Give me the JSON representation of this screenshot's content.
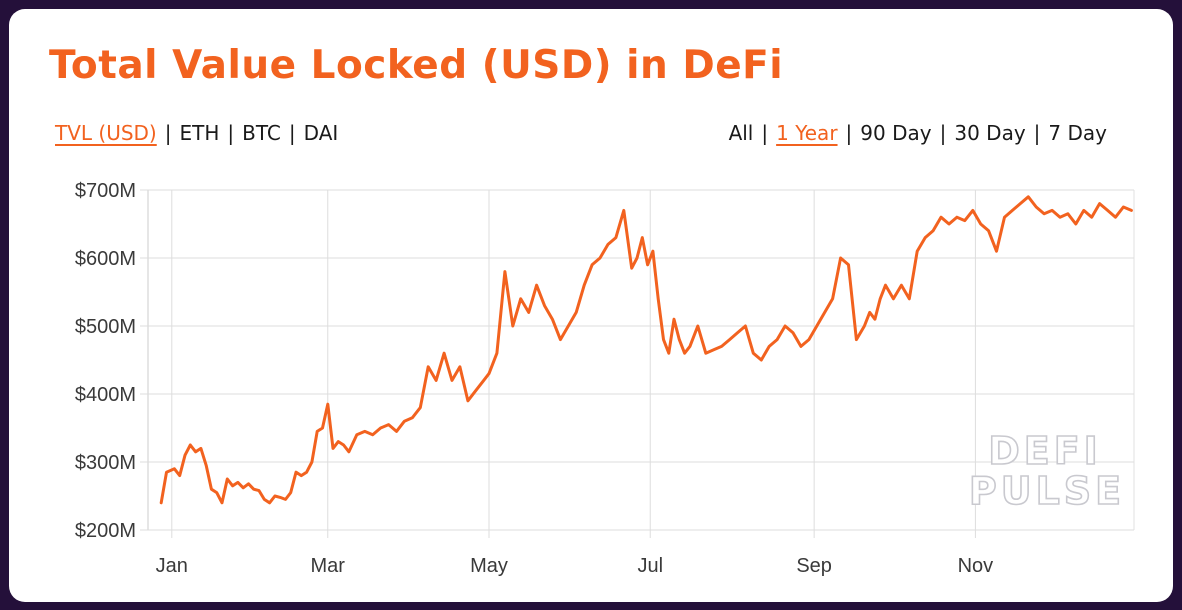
{
  "title": "Total Value Locked (USD) in DeFi",
  "metric_tabs": [
    {
      "label": "TVL (USD)",
      "active": true
    },
    {
      "label": "ETH",
      "active": false
    },
    {
      "label": "BTC",
      "active": false
    },
    {
      "label": "DAI",
      "active": false
    }
  ],
  "range_tabs": [
    {
      "label": "All",
      "active": false
    },
    {
      "label": "1 Year",
      "active": true
    },
    {
      "label": "90 Day",
      "active": false
    },
    {
      "label": "30 Day",
      "active": false
    },
    {
      "label": "7 Day",
      "active": false
    }
  ],
  "separator": "|",
  "watermark": [
    "DEFI",
    "PULSE"
  ],
  "colors": {
    "accent": "#f2621f",
    "line": "#f2621f",
    "background": "#24103a",
    "card": "#ffffff",
    "grid": "#dddddd"
  },
  "chart_data": {
    "type": "line",
    "title": "Total Value Locked (USD) in DeFi",
    "xlabel": "",
    "ylabel": "",
    "ylim": [
      200,
      700
    ],
    "y_unit": "M USD",
    "y_ticks": [
      {
        "value": 200,
        "label": "$200M"
      },
      {
        "value": 300,
        "label": "$300M"
      },
      {
        "value": 400,
        "label": "$400M"
      },
      {
        "value": 500,
        "label": "$500M"
      },
      {
        "value": 600,
        "label": "$600M"
      },
      {
        "value": 700,
        "label": "$700M"
      }
    ],
    "x_ticks": [
      {
        "date": "2019-01-01",
        "label": "Jan"
      },
      {
        "date": "2019-03-01",
        "label": "Mar"
      },
      {
        "date": "2019-05-01",
        "label": "May"
      },
      {
        "date": "2019-07-01",
        "label": "Jul"
      },
      {
        "date": "2019-09-01",
        "label": "Sep"
      },
      {
        "date": "2019-11-01",
        "label": "Nov"
      }
    ],
    "xlim": [
      "2018-12-23",
      "2019-12-31"
    ],
    "grid": true,
    "legend": "none",
    "series": [
      {
        "x": [
          "2018-12-28",
          "2018-12-30",
          "2019-01-02",
          "2019-01-04",
          "2019-01-06",
          "2019-01-08",
          "2019-01-10",
          "2019-01-12",
          "2019-01-14",
          "2019-01-16",
          "2019-01-18",
          "2019-01-20",
          "2019-01-22",
          "2019-01-24",
          "2019-01-26",
          "2019-01-28",
          "2019-01-30",
          "2019-02-01",
          "2019-02-03",
          "2019-02-05",
          "2019-02-07",
          "2019-02-09",
          "2019-02-11",
          "2019-02-13",
          "2019-02-15",
          "2019-02-17",
          "2019-02-19",
          "2019-02-21",
          "2019-02-23",
          "2019-02-25",
          "2019-02-27",
          "2019-03-01",
          "2019-03-03",
          "2019-03-05",
          "2019-03-07",
          "2019-03-09",
          "2019-03-12",
          "2019-03-15",
          "2019-03-18",
          "2019-03-21",
          "2019-03-24",
          "2019-03-27",
          "2019-03-30",
          "2019-04-02",
          "2019-04-05",
          "2019-04-08",
          "2019-04-11",
          "2019-04-14",
          "2019-04-17",
          "2019-04-20",
          "2019-04-23",
          "2019-04-26",
          "2019-04-29",
          "2019-05-01",
          "2019-05-04",
          "2019-05-07",
          "2019-05-10",
          "2019-05-13",
          "2019-05-16",
          "2019-05-19",
          "2019-05-22",
          "2019-05-25",
          "2019-05-28",
          "2019-05-31",
          "2019-06-03",
          "2019-06-06",
          "2019-06-09",
          "2019-06-12",
          "2019-06-15",
          "2019-06-18",
          "2019-06-21",
          "2019-06-24",
          "2019-06-26",
          "2019-06-28",
          "2019-06-30",
          "2019-07-02",
          "2019-07-04",
          "2019-07-06",
          "2019-07-08",
          "2019-07-10",
          "2019-07-12",
          "2019-07-14",
          "2019-07-16",
          "2019-07-19",
          "2019-07-22",
          "2019-07-25",
          "2019-07-28",
          "2019-07-31",
          "2019-08-03",
          "2019-08-06",
          "2019-08-09",
          "2019-08-12",
          "2019-08-15",
          "2019-08-18",
          "2019-08-21",
          "2019-08-24",
          "2019-08-27",
          "2019-08-30",
          "2019-09-02",
          "2019-09-05",
          "2019-09-08",
          "2019-09-11",
          "2019-09-14",
          "2019-09-17",
          "2019-09-20",
          "2019-09-22",
          "2019-09-24",
          "2019-09-26",
          "2019-09-28",
          "2019-10-01",
          "2019-10-04",
          "2019-10-07",
          "2019-10-10",
          "2019-10-13",
          "2019-10-16",
          "2019-10-19",
          "2019-10-22",
          "2019-10-25",
          "2019-10-28",
          "2019-10-31",
          "2019-11-03",
          "2019-11-06",
          "2019-11-09",
          "2019-11-12",
          "2019-11-15",
          "2019-11-18",
          "2019-11-21",
          "2019-11-24",
          "2019-11-27",
          "2019-11-30",
          "2019-12-03",
          "2019-12-06",
          "2019-12-09",
          "2019-12-12",
          "2019-12-15",
          "2019-12-18",
          "2019-12-21",
          "2019-12-24",
          "2019-12-27",
          "2019-12-30"
        ],
        "y": [
          240,
          285,
          290,
          280,
          310,
          325,
          315,
          320,
          295,
          260,
          255,
          240,
          275,
          265,
          270,
          262,
          268,
          260,
          258,
          245,
          240,
          250,
          248,
          245,
          255,
          285,
          280,
          285,
          300,
          345,
          350,
          385,
          320,
          330,
          325,
          315,
          340,
          345,
          340,
          350,
          355,
          345,
          360,
          365,
          380,
          440,
          420,
          460,
          420,
          440,
          390,
          405,
          420,
          430,
          460,
          580,
          500,
          540,
          520,
          560,
          530,
          510,
          480,
          500,
          520,
          560,
          590,
          600,
          620,
          630,
          670,
          585,
          600,
          630,
          590,
          610,
          540,
          480,
          460,
          510,
          480,
          460,
          470,
          500,
          460,
          465,
          470,
          480,
          490,
          500,
          460,
          450,
          470,
          480,
          500,
          490,
          470,
          480,
          500,
          520,
          540,
          600,
          590,
          480,
          500,
          520,
          510,
          540,
          560,
          540,
          560,
          540,
          610,
          630,
          640,
          660,
          650,
          660,
          655,
          670,
          650,
          640,
          610,
          660,
          670,
          680,
          690,
          675,
          665,
          670,
          660,
          665,
          650,
          670,
          660,
          680,
          670,
          660,
          675,
          670
        ]
      }
    ]
  }
}
